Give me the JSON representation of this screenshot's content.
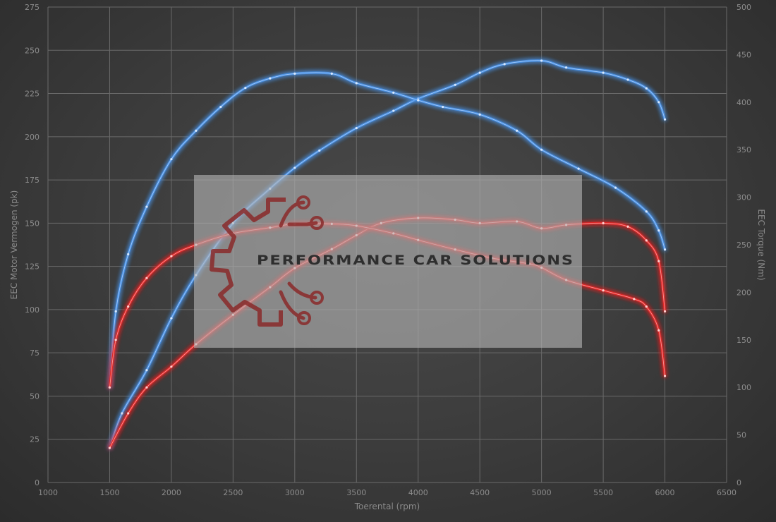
{
  "chart_data": {
    "type": "line",
    "xlabel": "Toerental (rpm)",
    "ylabel_left": "EEC Motor Vermogen (pk)",
    "ylabel_right": "EEC Torque (Nm)",
    "xlim": [
      1000,
      6500
    ],
    "ylim_left": [
      0,
      275
    ],
    "ylim_right": [
      0,
      500
    ],
    "x_ticks": [
      1000,
      1500,
      2000,
      2500,
      3000,
      3500,
      4000,
      4500,
      5000,
      5500,
      6000,
      6500
    ],
    "y_left_ticks": [
      0,
      25,
      50,
      75,
      100,
      125,
      150,
      175,
      200,
      225,
      250,
      275
    ],
    "y_right_ticks": [
      0,
      50,
      100,
      150,
      200,
      250,
      300,
      350,
      400,
      450,
      500
    ],
    "grid": true,
    "series": [
      {
        "axis": "left",
        "color": "#4a90e2",
        "points": [
          [
            1500,
            20
          ],
          [
            1600,
            40
          ],
          [
            1800,
            65
          ],
          [
            2000,
            95
          ],
          [
            2200,
            120
          ],
          [
            2500,
            150
          ],
          [
            2800,
            170
          ],
          [
            3000,
            182
          ],
          [
            3200,
            192
          ],
          [
            3500,
            205
          ],
          [
            3800,
            215
          ],
          [
            4000,
            222
          ],
          [
            4300,
            230
          ],
          [
            4500,
            237
          ],
          [
            4700,
            242
          ],
          [
            5000,
            244
          ],
          [
            5200,
            240
          ],
          [
            5500,
            237
          ],
          [
            5700,
            233
          ],
          [
            5850,
            228
          ],
          [
            5950,
            220
          ],
          [
            6000,
            210
          ]
        ]
      },
      {
        "axis": "right",
        "color": "#4a90e2",
        "points": [
          [
            1500,
            100
          ],
          [
            1550,
            180
          ],
          [
            1650,
            240
          ],
          [
            1800,
            290
          ],
          [
            2000,
            340
          ],
          [
            2200,
            370
          ],
          [
            2400,
            395
          ],
          [
            2600,
            415
          ],
          [
            2800,
            425
          ],
          [
            3000,
            430
          ],
          [
            3300,
            430
          ],
          [
            3500,
            420
          ],
          [
            3800,
            410
          ],
          [
            4000,
            402
          ],
          [
            4200,
            395
          ],
          [
            4500,
            387
          ],
          [
            4800,
            370
          ],
          [
            5000,
            350
          ],
          [
            5300,
            330
          ],
          [
            5600,
            310
          ],
          [
            5850,
            285
          ],
          [
            5950,
            265
          ],
          [
            6000,
            245
          ]
        ]
      },
      {
        "axis": "left",
        "color": "#e02828",
        "points": [
          [
            1500,
            20
          ],
          [
            1650,
            40
          ],
          [
            1800,
            55
          ],
          [
            2000,
            67
          ],
          [
            2200,
            80
          ],
          [
            2500,
            97
          ],
          [
            2800,
            113
          ],
          [
            3000,
            124
          ],
          [
            3300,
            135
          ],
          [
            3500,
            143
          ],
          [
            3700,
            150
          ],
          [
            4000,
            153
          ],
          [
            4300,
            152
          ],
          [
            4500,
            150
          ],
          [
            4800,
            151
          ],
          [
            5000,
            147
          ],
          [
            5200,
            149
          ],
          [
            5500,
            150
          ],
          [
            5700,
            148
          ],
          [
            5850,
            140
          ],
          [
            5950,
            128
          ],
          [
            6000,
            99
          ]
        ]
      },
      {
        "axis": "right",
        "color": "#e02828",
        "points": [
          [
            1500,
            100
          ],
          [
            1550,
            150
          ],
          [
            1650,
            185
          ],
          [
            1800,
            215
          ],
          [
            2000,
            238
          ],
          [
            2200,
            250
          ],
          [
            2500,
            262
          ],
          [
            2800,
            268
          ],
          [
            3000,
            272
          ],
          [
            3300,
            272
          ],
          [
            3500,
            270
          ],
          [
            3800,
            262
          ],
          [
            4000,
            255
          ],
          [
            4300,
            245
          ],
          [
            4600,
            236
          ],
          [
            4900,
            230
          ],
          [
            5000,
            226
          ],
          [
            5200,
            213
          ],
          [
            5500,
            202
          ],
          [
            5750,
            193
          ],
          [
            5850,
            185
          ],
          [
            5950,
            160
          ],
          [
            6000,
            112
          ]
        ]
      }
    ]
  },
  "watermark": {
    "brand": "PERFORMANCE CAR SOLUTIONS",
    "logo_icon": "gear-circuit-icon",
    "logo_color": "#8a2a2a"
  }
}
